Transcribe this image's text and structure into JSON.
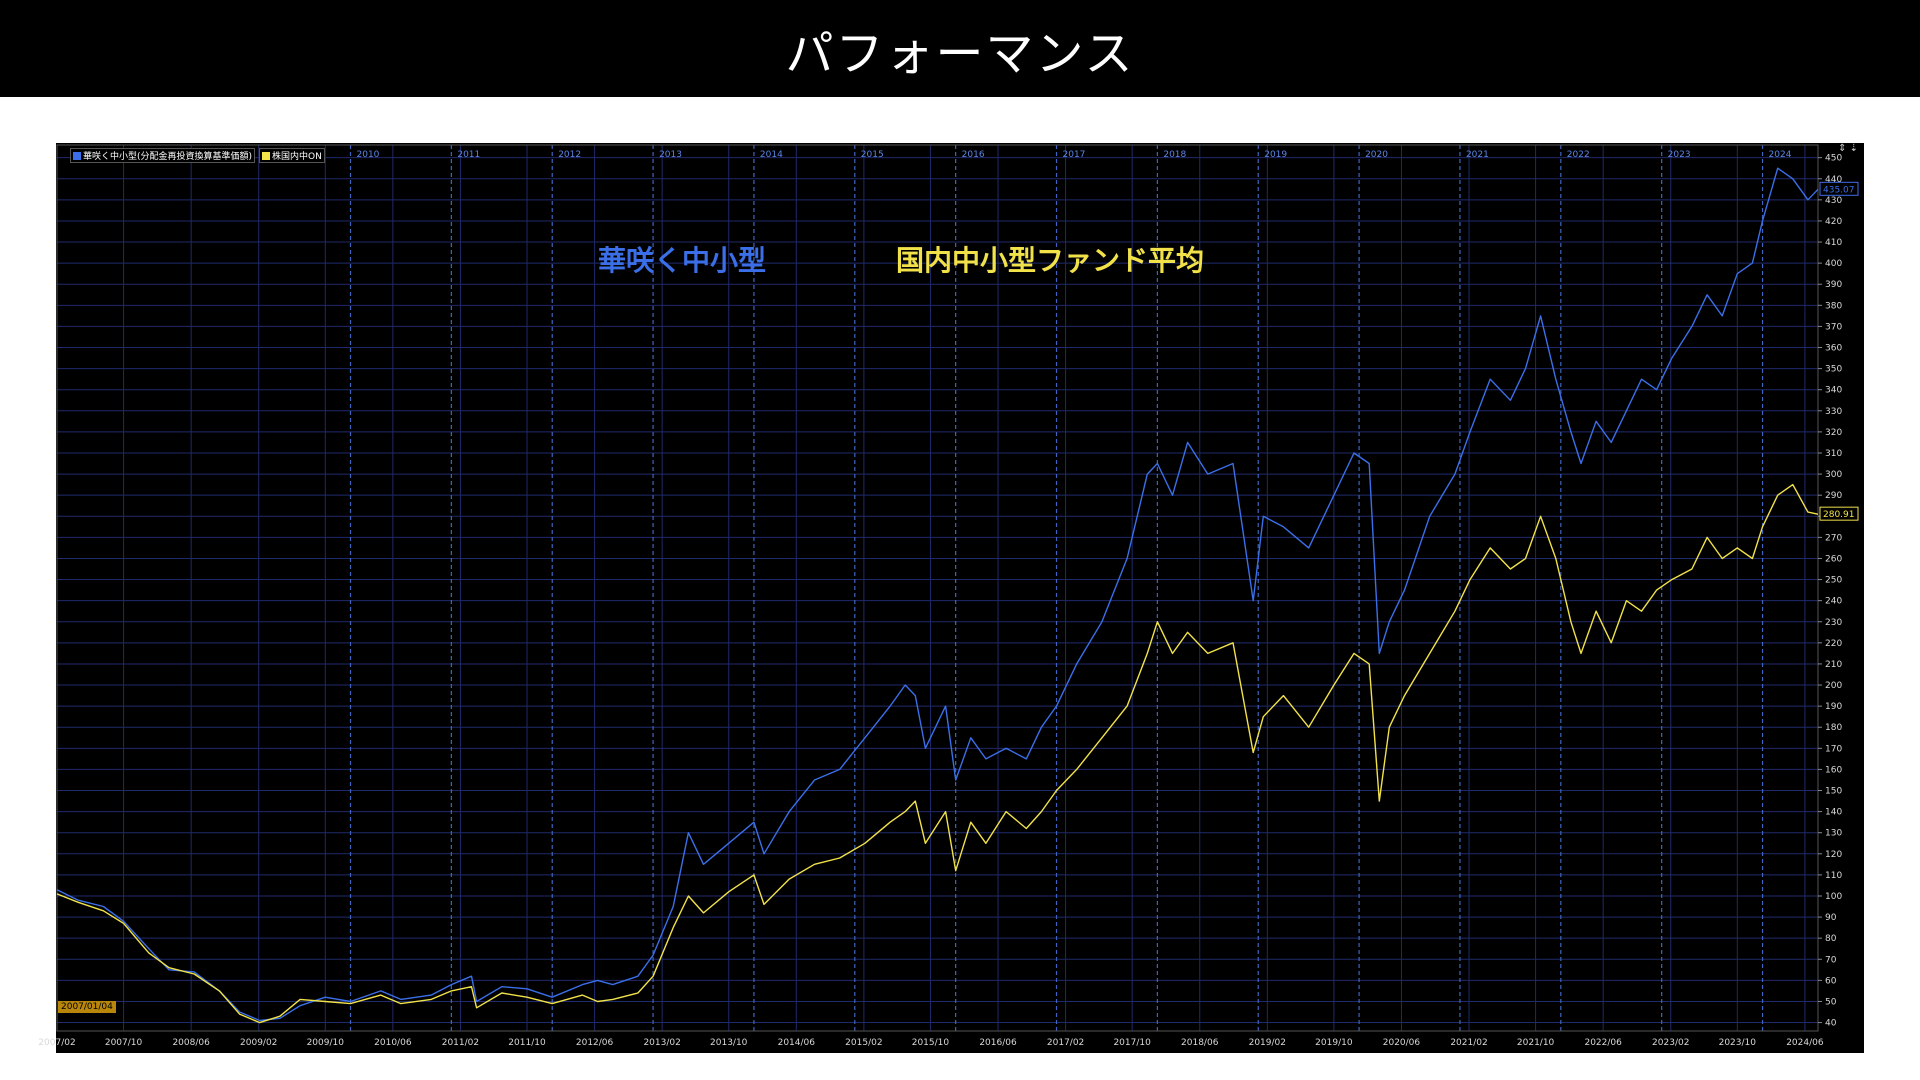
{
  "header": {
    "title": "パフォーマンス"
  },
  "legend": [
    {
      "label": "華咲く中小型(分配金再投資換算基準価額)",
      "color": "#3b6fe8"
    },
    {
      "label": "株国内中ON",
      "color": "#f1e24a"
    }
  ],
  "annotations": {
    "fund_label": "華咲く中小型",
    "avg_label": "国内中小型ファンド平均"
  },
  "start_date_label": "2007/01/04",
  "top_icons": "⇕ ⇣",
  "colors": {
    "fund": "#3b6fe8",
    "avg": "#f1e24a",
    "background": "#000000",
    "grid": "#1f2a6b",
    "year_sep": "#3f65c0",
    "axis_text": "#d8d8d8"
  },
  "chart_data": {
    "type": "line",
    "title": "",
    "xlabel": "",
    "ylabel": "",
    "ylim": [
      36,
      456
    ],
    "y_ticks": [
      40,
      50,
      60,
      70,
      80,
      90,
      100,
      110,
      120,
      130,
      140,
      150,
      160,
      170,
      180,
      190,
      200,
      210,
      220,
      230,
      240,
      250,
      260,
      270,
      280,
      290,
      300,
      310,
      320,
      330,
      340,
      350,
      360,
      370,
      380,
      390,
      400,
      410,
      420,
      430,
      440,
      450
    ],
    "x_range": [
      2007.09,
      2024.55
    ],
    "x_tick_labels": [
      {
        "t": 2007.09,
        "label": "2007/02"
      },
      {
        "t": 2007.75,
        "label": "2007/10"
      },
      {
        "t": 2008.42,
        "label": "2008/06"
      },
      {
        "t": 2009.09,
        "label": "2009/02"
      },
      {
        "t": 2009.75,
        "label": "2009/10"
      },
      {
        "t": 2010.42,
        "label": "2010/06"
      },
      {
        "t": 2011.09,
        "label": "2011/02"
      },
      {
        "t": 2011.75,
        "label": "2011/10"
      },
      {
        "t": 2012.42,
        "label": "2012/06"
      },
      {
        "t": 2013.09,
        "label": "2013/02"
      },
      {
        "t": 2013.75,
        "label": "2013/10"
      },
      {
        "t": 2014.42,
        "label": "2014/06"
      },
      {
        "t": 2015.09,
        "label": "2015/02"
      },
      {
        "t": 2015.75,
        "label": "2015/10"
      },
      {
        "t": 2016.42,
        "label": "2016/06"
      },
      {
        "t": 2017.09,
        "label": "2017/02"
      },
      {
        "t": 2017.75,
        "label": "2017/10"
      },
      {
        "t": 2018.42,
        "label": "2018/06"
      },
      {
        "t": 2019.09,
        "label": "2019/02"
      },
      {
        "t": 2019.75,
        "label": "2019/10"
      },
      {
        "t": 2020.42,
        "label": "2020/06"
      },
      {
        "t": 2021.09,
        "label": "2021/02"
      },
      {
        "t": 2021.75,
        "label": "2021/10"
      },
      {
        "t": 2022.42,
        "label": "2022/06"
      },
      {
        "t": 2023.09,
        "label": "2023/02"
      },
      {
        "t": 2023.75,
        "label": "2023/10"
      },
      {
        "t": 2024.42,
        "label": "2024/06"
      }
    ],
    "year_markers": [
      {
        "t": 2010.0,
        "label": "2010"
      },
      {
        "t": 2011.0,
        "label": "2011"
      },
      {
        "t": 2012.0,
        "label": "2012"
      },
      {
        "t": 2013.0,
        "label": "2013"
      },
      {
        "t": 2014.0,
        "label": "2014"
      },
      {
        "t": 2015.0,
        "label": "2015"
      },
      {
        "t": 2016.0,
        "label": "2016"
      },
      {
        "t": 2017.0,
        "label": "2017"
      },
      {
        "t": 2018.0,
        "label": "2018"
      },
      {
        "t": 2019.0,
        "label": "2019"
      },
      {
        "t": 2020.0,
        "label": "2020"
      },
      {
        "t": 2021.0,
        "label": "2021"
      },
      {
        "t": 2022.0,
        "label": "2022"
      },
      {
        "t": 2023.0,
        "label": "2023"
      },
      {
        "t": 2024.0,
        "label": "2024"
      }
    ],
    "series": [
      {
        "name": "華咲く中小型(分配金再投資換算基準価額)",
        "last_value": "435.07",
        "points": [
          [
            2007.09,
            103
          ],
          [
            2007.3,
            98
          ],
          [
            2007.55,
            95
          ],
          [
            2007.75,
            88
          ],
          [
            2008.0,
            75
          ],
          [
            2008.2,
            65
          ],
          [
            2008.45,
            64
          ],
          [
            2008.7,
            55
          ],
          [
            2008.9,
            45
          ],
          [
            2009.1,
            41
          ],
          [
            2009.3,
            42
          ],
          [
            2009.5,
            48
          ],
          [
            2009.75,
            52
          ],
          [
            2010.0,
            50
          ],
          [
            2010.3,
            55
          ],
          [
            2010.5,
            51
          ],
          [
            2010.8,
            53
          ],
          [
            2011.0,
            58
          ],
          [
            2011.2,
            62
          ],
          [
            2011.25,
            50
          ],
          [
            2011.5,
            57
          ],
          [
            2011.75,
            56
          ],
          [
            2012.0,
            52
          ],
          [
            2012.3,
            58
          ],
          [
            2012.45,
            60
          ],
          [
            2012.6,
            58
          ],
          [
            2012.85,
            62
          ],
          [
            2013.0,
            72
          ],
          [
            2013.2,
            95
          ],
          [
            2013.35,
            130
          ],
          [
            2013.5,
            115
          ],
          [
            2013.75,
            125
          ],
          [
            2014.0,
            135
          ],
          [
            2014.1,
            120
          ],
          [
            2014.35,
            140
          ],
          [
            2014.6,
            155
          ],
          [
            2014.85,
            160
          ],
          [
            2015.1,
            175
          ],
          [
            2015.35,
            190
          ],
          [
            2015.5,
            200
          ],
          [
            2015.6,
            195
          ],
          [
            2015.7,
            170
          ],
          [
            2015.9,
            190
          ],
          [
            2016.0,
            155
          ],
          [
            2016.15,
            175
          ],
          [
            2016.3,
            165
          ],
          [
            2016.5,
            170
          ],
          [
            2016.7,
            165
          ],
          [
            2016.85,
            180
          ],
          [
            2017.0,
            190
          ],
          [
            2017.2,
            210
          ],
          [
            2017.45,
            230
          ],
          [
            2017.7,
            260
          ],
          [
            2017.9,
            300
          ],
          [
            2018.0,
            305
          ],
          [
            2018.15,
            290
          ],
          [
            2018.3,
            315
          ],
          [
            2018.5,
            300
          ],
          [
            2018.75,
            305
          ],
          [
            2018.95,
            240
          ],
          [
            2019.05,
            280
          ],
          [
            2019.25,
            275
          ],
          [
            2019.5,
            265
          ],
          [
            2019.75,
            290
          ],
          [
            2019.95,
            310
          ],
          [
            2020.1,
            305
          ],
          [
            2020.2,
            215
          ],
          [
            2020.3,
            230
          ],
          [
            2020.45,
            245
          ],
          [
            2020.7,
            280
          ],
          [
            2020.95,
            300
          ],
          [
            2021.1,
            320
          ],
          [
            2021.3,
            345
          ],
          [
            2021.5,
            335
          ],
          [
            2021.65,
            350
          ],
          [
            2021.8,
            375
          ],
          [
            2021.95,
            345
          ],
          [
            2022.1,
            320
          ],
          [
            2022.2,
            305
          ],
          [
            2022.35,
            325
          ],
          [
            2022.5,
            315
          ],
          [
            2022.65,
            330
          ],
          [
            2022.8,
            345
          ],
          [
            2022.95,
            340
          ],
          [
            2023.1,
            355
          ],
          [
            2023.3,
            370
          ],
          [
            2023.45,
            385
          ],
          [
            2023.6,
            375
          ],
          [
            2023.75,
            395
          ],
          [
            2023.9,
            400
          ],
          [
            2024.0,
            420
          ],
          [
            2024.15,
            445
          ],
          [
            2024.3,
            440
          ],
          [
            2024.45,
            430
          ],
          [
            2024.55,
            435
          ]
        ]
      },
      {
        "name": "株国内中ON",
        "last_value": "280.91",
        "points": [
          [
            2007.09,
            101
          ],
          [
            2007.3,
            97
          ],
          [
            2007.55,
            93
          ],
          [
            2007.75,
            87
          ],
          [
            2008.0,
            73
          ],
          [
            2008.2,
            66
          ],
          [
            2008.45,
            63
          ],
          [
            2008.7,
            55
          ],
          [
            2008.9,
            44
          ],
          [
            2009.1,
            40
          ],
          [
            2009.3,
            43
          ],
          [
            2009.5,
            51
          ],
          [
            2009.75,
            50
          ],
          [
            2010.0,
            49
          ],
          [
            2010.3,
            53
          ],
          [
            2010.5,
            49
          ],
          [
            2010.8,
            51
          ],
          [
            2011.0,
            55
          ],
          [
            2011.2,
            57
          ],
          [
            2011.25,
            47
          ],
          [
            2011.5,
            54
          ],
          [
            2011.75,
            52
          ],
          [
            2012.0,
            49
          ],
          [
            2012.3,
            53
          ],
          [
            2012.45,
            50
          ],
          [
            2012.6,
            51
          ],
          [
            2012.85,
            54
          ],
          [
            2013.0,
            62
          ],
          [
            2013.2,
            85
          ],
          [
            2013.35,
            100
          ],
          [
            2013.5,
            92
          ],
          [
            2013.75,
            102
          ],
          [
            2014.0,
            110
          ],
          [
            2014.1,
            96
          ],
          [
            2014.35,
            108
          ],
          [
            2014.6,
            115
          ],
          [
            2014.85,
            118
          ],
          [
            2015.1,
            125
          ],
          [
            2015.35,
            135
          ],
          [
            2015.5,
            140
          ],
          [
            2015.6,
            145
          ],
          [
            2015.7,
            125
          ],
          [
            2015.9,
            140
          ],
          [
            2016.0,
            112
          ],
          [
            2016.15,
            135
          ],
          [
            2016.3,
            125
          ],
          [
            2016.5,
            140
          ],
          [
            2016.7,
            132
          ],
          [
            2016.85,
            140
          ],
          [
            2017.0,
            150
          ],
          [
            2017.2,
            160
          ],
          [
            2017.45,
            175
          ],
          [
            2017.7,
            190
          ],
          [
            2017.9,
            215
          ],
          [
            2018.0,
            230
          ],
          [
            2018.15,
            215
          ],
          [
            2018.3,
            225
          ],
          [
            2018.5,
            215
          ],
          [
            2018.75,
            220
          ],
          [
            2018.95,
            168
          ],
          [
            2019.05,
            185
          ],
          [
            2019.25,
            195
          ],
          [
            2019.5,
            180
          ],
          [
            2019.75,
            200
          ],
          [
            2019.95,
            215
          ],
          [
            2020.1,
            210
          ],
          [
            2020.2,
            145
          ],
          [
            2020.3,
            180
          ],
          [
            2020.45,
            195
          ],
          [
            2020.7,
            215
          ],
          [
            2020.95,
            235
          ],
          [
            2021.1,
            250
          ],
          [
            2021.3,
            265
          ],
          [
            2021.5,
            255
          ],
          [
            2021.65,
            260
          ],
          [
            2021.8,
            280
          ],
          [
            2021.95,
            260
          ],
          [
            2022.1,
            230
          ],
          [
            2022.2,
            215
          ],
          [
            2022.35,
            235
          ],
          [
            2022.5,
            220
          ],
          [
            2022.65,
            240
          ],
          [
            2022.8,
            235
          ],
          [
            2022.95,
            245
          ],
          [
            2023.1,
            250
          ],
          [
            2023.3,
            255
          ],
          [
            2023.45,
            270
          ],
          [
            2023.6,
            260
          ],
          [
            2023.75,
            265
          ],
          [
            2023.9,
            260
          ],
          [
            2024.0,
            275
          ],
          [
            2024.15,
            290
          ],
          [
            2024.3,
            295
          ],
          [
            2024.45,
            282
          ],
          [
            2024.55,
            281
          ]
        ]
      }
    ]
  }
}
